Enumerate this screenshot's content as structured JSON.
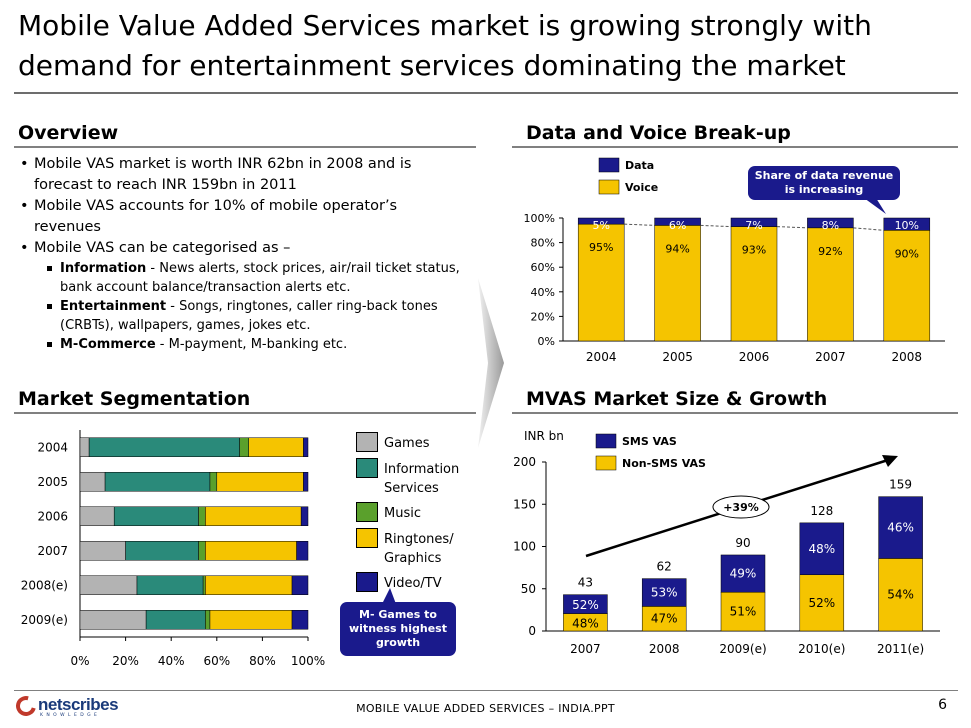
{
  "slide": {
    "title_line1": "Mobile Value Added Services market is growing strongly with",
    "title_line2": "demand for entertainment services dominating the market"
  },
  "overview": {
    "heading": "Overview",
    "bullets": [
      {
        "line1": "Mobile VAS market is worth INR 62bn in 2008 and is",
        "line2": "forecast to reach INR 159bn in 2011"
      },
      {
        "line1": "Mobile VAS accounts for 10% of mobile operator’s",
        "line2": "revenues"
      },
      {
        "line1": "Mobile VAS can be categorised as –",
        "line2": ""
      }
    ],
    "subbullets": [
      {
        "term": "Information",
        "line1": " - News alerts, stock prices, air/rail ticket status,",
        "line2": "bank account balance/transaction alerts etc."
      },
      {
        "term": "Entertainment",
        "line1": " - Songs, ringtones, caller ring-back tones",
        "line2": "(CRBTs), wallpapers, games, jokes etc."
      },
      {
        "term": "M-Commerce",
        "line1": " - M-payment, M-banking etc.",
        "line2": ""
      }
    ]
  },
  "breakup": {
    "heading": "Data and Voice Break-up",
    "callout_line1": "Share of data revenue",
    "callout_line2": "is increasing"
  },
  "segmentation": {
    "heading": "Market Segmentation",
    "callout_line1": "M- Games to",
    "callout_line2": "witness highest",
    "callout_line3": "growth"
  },
  "mvas": {
    "heading": "MVAS Market Size & Growth",
    "growth_label": "+39%"
  },
  "chart_data": [
    {
      "type": "bar",
      "stacked": true,
      "title": "Data and Voice Break-up",
      "categories": [
        "2004",
        "2005",
        "2006",
        "2007",
        "2008"
      ],
      "series": [
        {
          "name": "Voice",
          "values": [
            95,
            94,
            93,
            92,
            90
          ],
          "labels": [
            "95%",
            "94%",
            "93%",
            "92%",
            "90%"
          ],
          "color": "#f5c400"
        },
        {
          "name": "Data",
          "values": [
            5,
            6,
            7,
            8,
            10
          ],
          "labels": [
            "5%",
            "6%",
            "7%",
            "8%",
            "10%"
          ],
          "color": "#1a1a8c"
        }
      ],
      "yticks": [
        "0%",
        "20%",
        "40%",
        "60%",
        "80%",
        "100%"
      ],
      "ylim": [
        0,
        100
      ]
    },
    {
      "type": "bar",
      "stacked": true,
      "orientation": "horizontal",
      "title": "Market Segmentation",
      "categories": [
        "2004",
        "2005",
        "2006",
        "2007",
        "2008(e)",
        "2009(e)"
      ],
      "series": [
        {
          "name": "Games",
          "values": [
            4,
            11,
            15,
            20,
            25,
            29
          ],
          "color": "#b3b3b3"
        },
        {
          "name": "Information Services",
          "values": [
            66,
            46,
            37,
            32,
            29,
            26
          ],
          "color": "#2a8a7a"
        },
        {
          "name": "Music",
          "values": [
            4,
            3,
            3,
            3,
            1,
            2
          ],
          "color": "#5aa02c"
        },
        {
          "name": "Ringtones/ Graphics",
          "values": [
            24,
            38,
            42,
            40,
            38,
            36
          ],
          "color": "#f5c400"
        },
        {
          "name": "Video/TV",
          "values": [
            2,
            2,
            3,
            5,
            7,
            7
          ],
          "color": "#1a1a8c"
        }
      ],
      "xticks": [
        "0%",
        "20%",
        "40%",
        "60%",
        "80%",
        "100%"
      ],
      "xlim": [
        0,
        100
      ]
    },
    {
      "type": "bar",
      "stacked": true,
      "title": "MVAS Market Size & Growth",
      "ylabel": "INR bn",
      "categories": [
        "2007",
        "2008",
        "2009(e)",
        "2010(e)",
        "2011(e)"
      ],
      "totals": [
        43,
        62,
        90,
        128,
        159
      ],
      "total_labels": [
        "43",
        "62",
        "90",
        "128",
        "159"
      ],
      "series": [
        {
          "name": "Non-SMS VAS",
          "share": [
            48,
            47,
            51,
            52,
            54
          ],
          "labels": [
            "48%",
            "47%",
            "51%",
            "52%",
            "54%"
          ],
          "color": "#f5c400"
        },
        {
          "name": "SMS VAS",
          "share": [
            52,
            53,
            49,
            48,
            46
          ],
          "labels": [
            "52%",
            "53%",
            "49%",
            "48%",
            "46%"
          ],
          "color": "#1a1a8c"
        }
      ],
      "yticks": [
        "0",
        "50",
        "100",
        "150",
        "200"
      ],
      "ylim": [
        0,
        200
      ]
    }
  ],
  "footer": {
    "logo_text": "netscribes",
    "logo_sub": "K N O W L E D G E",
    "doc_name": "MOBILE VALUE ADDED SERVICES – INDIA.PPT",
    "page_number": "6"
  },
  "colors": {
    "navy": "#1a1a8c",
    "yellow": "#f5c400",
    "teal": "#2a8a7a",
    "green": "#5aa02c",
    "grey": "#b3b3b3"
  }
}
